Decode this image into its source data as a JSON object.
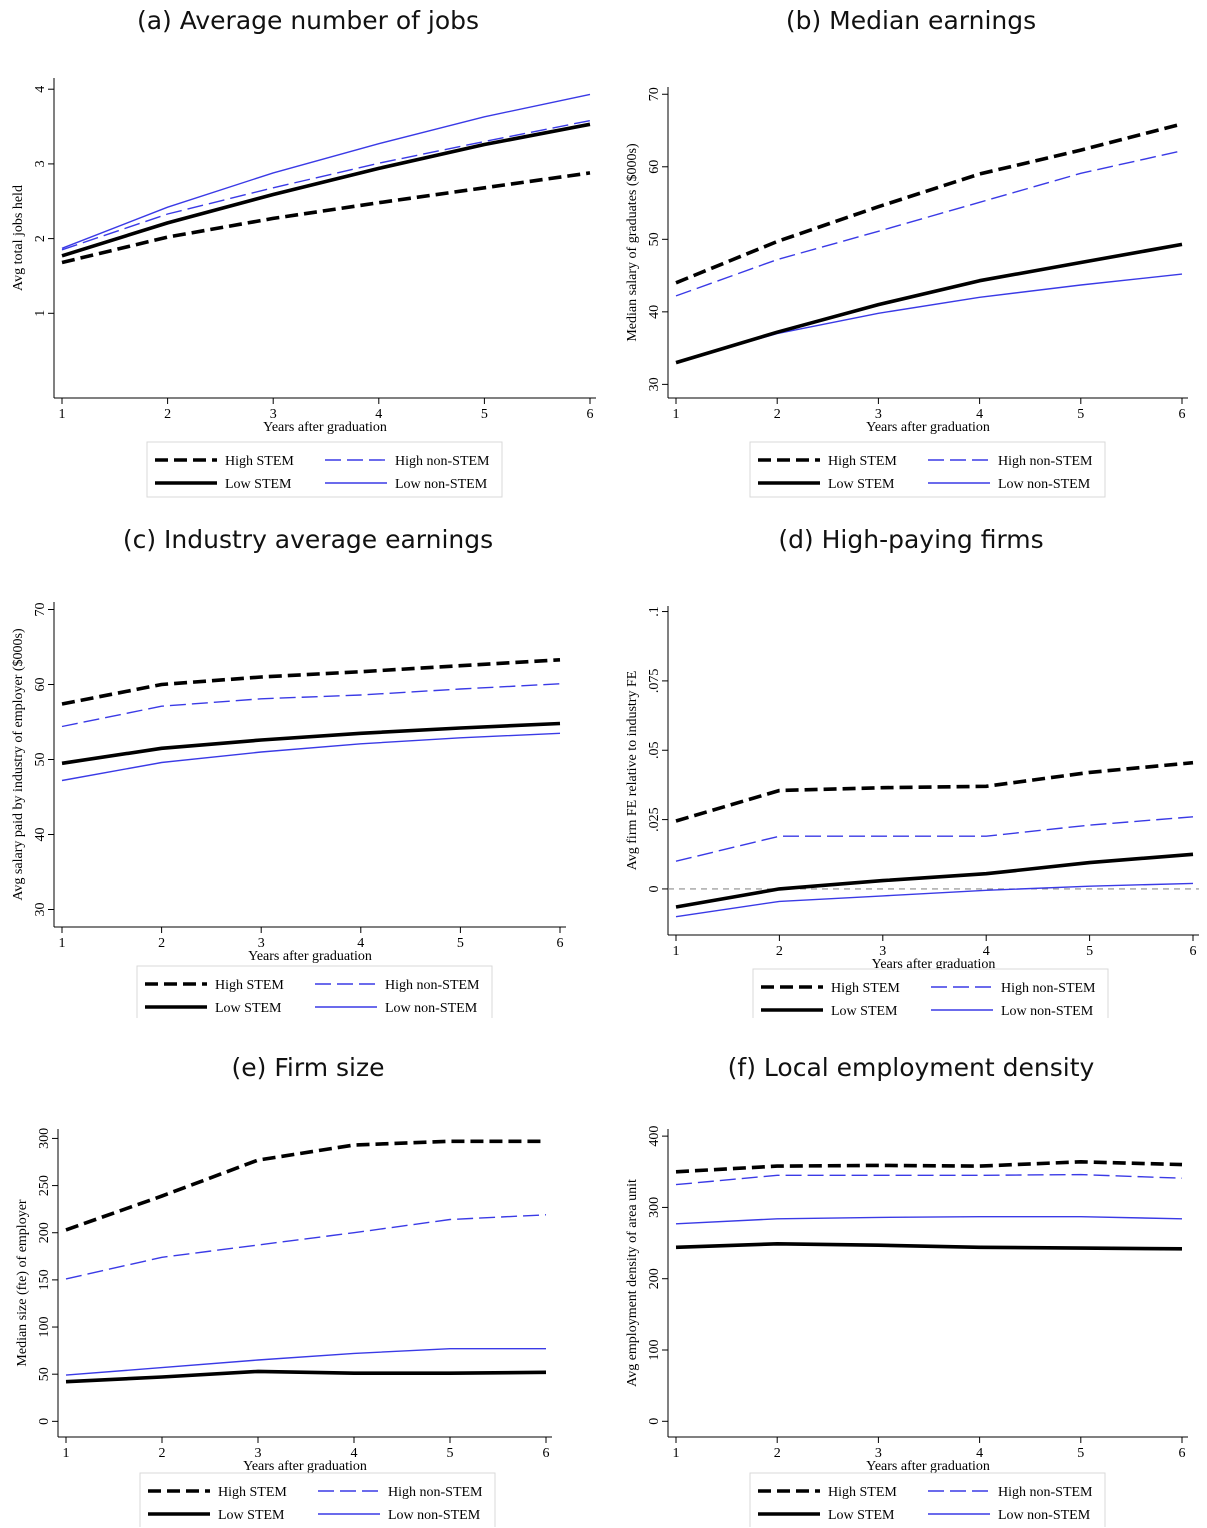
{
  "colors": {
    "stem": "#000000",
    "non_stem": "#3a3ae6",
    "zero_line": "#8c8c8c",
    "legend_border": "#d9d9d9"
  },
  "chart_data": [
    {
      "type": "line",
      "title": "(a)  Average number of jobs",
      "xlabel": "Years after graduation",
      "ylabel": "Avg total jobs held",
      "x": [
        1,
        2,
        3,
        4,
        5,
        6
      ],
      "xticks": [
        "1",
        "2",
        "3",
        "4",
        "5",
        "6"
      ],
      "yticks": [
        "1",
        "2",
        "3",
        "4"
      ],
      "ytick_values": [
        1,
        2,
        3,
        4
      ],
      "xlim": [
        1,
        6
      ],
      "ylim": [
        0,
        4.15
      ],
      "zero_line": false,
      "series": [
        {
          "name": "High STEM",
          "values": [
            1.68,
            2.02,
            2.27,
            2.48,
            2.68,
            2.88
          ]
        },
        {
          "name": "High non-STEM",
          "values": [
            1.85,
            2.33,
            2.68,
            3.01,
            3.3,
            3.58
          ]
        },
        {
          "name": "Low STEM",
          "values": [
            1.77,
            2.21,
            2.59,
            2.94,
            3.26,
            3.53
          ]
        },
        {
          "name": "Low non-STEM",
          "values": [
            1.87,
            2.42,
            2.88,
            3.27,
            3.63,
            3.93
          ]
        }
      ]
    },
    {
      "type": "line",
      "title": "(b)  Median earnings",
      "xlabel": "Years after graduation",
      "ylabel": "Median salary of graduates ($000s)",
      "x": [
        1,
        2,
        3,
        4,
        5,
        6
      ],
      "xticks": [
        "1",
        "2",
        "3",
        "4",
        "5",
        "6"
      ],
      "yticks": [
        "30",
        "40",
        "50",
        "60",
        "70"
      ],
      "ytick_values": [
        30,
        40,
        50,
        60,
        70
      ],
      "xlim": [
        1,
        6
      ],
      "ylim": [
        29.5,
        71
      ],
      "zero_line": false,
      "series": [
        {
          "name": "High STEM",
          "values": [
            44.0,
            49.7,
            54.5,
            59.0,
            62.3,
            65.9
          ]
        },
        {
          "name": "High non-STEM",
          "values": [
            42.2,
            47.2,
            51.1,
            55.1,
            59.1,
            62.2
          ]
        },
        {
          "name": "Low STEM",
          "values": [
            33.0,
            37.2,
            41.0,
            44.3,
            46.8,
            49.3
          ]
        },
        {
          "name": "Low non-STEM",
          "values": [
            33.1,
            37.0,
            39.8,
            42.0,
            43.7,
            45.2
          ]
        }
      ]
    },
    {
      "type": "line",
      "title": "(c)  Industry average earnings",
      "xlabel": "Years after graduation",
      "ylabel": "Avg salary paid by industry of employer ($000s)",
      "x": [
        1,
        2,
        3,
        4,
        5,
        6
      ],
      "xticks": [
        "1",
        "2",
        "3",
        "4",
        "5",
        "6"
      ],
      "yticks": [
        "30",
        "40",
        "50",
        "60",
        "70"
      ],
      "ytick_values": [
        30,
        40,
        50,
        60,
        70
      ],
      "xlim": [
        1,
        6
      ],
      "ylim": [
        29,
        71
      ],
      "zero_line": false,
      "series": [
        {
          "name": "High STEM",
          "values": [
            57.4,
            60.0,
            61.0,
            61.7,
            62.5,
            63.3
          ]
        },
        {
          "name": "High non-STEM",
          "values": [
            54.4,
            57.1,
            58.1,
            58.6,
            59.4,
            60.1
          ]
        },
        {
          "name": "Low STEM",
          "values": [
            49.5,
            51.5,
            52.6,
            53.5,
            54.2,
            54.8
          ]
        },
        {
          "name": "Low non-STEM",
          "values": [
            47.2,
            49.6,
            51.0,
            52.1,
            52.9,
            53.5
          ]
        }
      ]
    },
    {
      "type": "line",
      "title": "(d)  High-paying firms",
      "xlabel": "Years after graduation",
      "ylabel": "Avg firm FE relative to industry FE",
      "x": [
        1,
        2,
        3,
        4,
        5,
        6
      ],
      "xticks": [
        "1",
        "2",
        "3",
        "4",
        "5",
        "6"
      ],
      "yticks": [
        "0",
        ".025",
        ".05",
        ".075",
        ".1"
      ],
      "ytick_values": [
        0,
        0.025,
        0.05,
        0.075,
        0.1
      ],
      "xlim": [
        1,
        6
      ],
      "ylim": [
        -0.013,
        0.102
      ],
      "zero_line": true,
      "series": [
        {
          "name": "High STEM",
          "values": [
            0.0245,
            0.0355,
            0.0365,
            0.037,
            0.042,
            0.0455
          ]
        },
        {
          "name": "High non-STEM",
          "values": [
            0.01,
            0.019,
            0.019,
            0.019,
            0.023,
            0.026
          ]
        },
        {
          "name": "Low STEM",
          "values": [
            -0.0065,
            0.0,
            0.003,
            0.0055,
            0.0095,
            0.0125
          ]
        },
        {
          "name": "Low non-STEM",
          "values": [
            -0.01,
            -0.0045,
            -0.0025,
            -0.0005,
            0.001,
            0.002
          ]
        }
      ]
    },
    {
      "type": "line",
      "title": "(e)  Firm size",
      "xlabel": "Years after graduation",
      "ylabel": "Median size (fte) of employer",
      "x": [
        1,
        2,
        3,
        4,
        5,
        6
      ],
      "xticks": [
        "1",
        "2",
        "3",
        "4",
        "5",
        "6"
      ],
      "yticks": [
        "0",
        "50",
        "100",
        "150",
        "200",
        "250",
        "300"
      ],
      "ytick_values": [
        0,
        50,
        100,
        150,
        200,
        250,
        300
      ],
      "xlim": [
        1,
        6
      ],
      "ylim": [
        -6,
        310
      ],
      "zero_line": false,
      "series": [
        {
          "name": "High STEM",
          "values": [
            203,
            239,
            277,
            293,
            297,
            297
          ]
        },
        {
          "name": "High non-STEM",
          "values": [
            151,
            174,
            187,
            200,
            214,
            219
          ]
        },
        {
          "name": "Low STEM",
          "values": [
            42,
            47,
            53,
            51,
            51,
            52
          ]
        },
        {
          "name": "Low non-STEM",
          "values": [
            49,
            57,
            65,
            72,
            77,
            77
          ]
        }
      ]
    },
    {
      "type": "line",
      "title": "(f)  Local employment density",
      "xlabel": "Years after graduation",
      "ylabel": "Avg employment density of area unit",
      "x": [
        1,
        2,
        3,
        4,
        5,
        6
      ],
      "xticks": [
        "1",
        "2",
        "3",
        "4",
        "5",
        "6"
      ],
      "yticks": [
        "0",
        "100",
        "200",
        "300",
        "400"
      ],
      "ytick_values": [
        0,
        100,
        200,
        300,
        400
      ],
      "xlim": [
        1,
        6
      ],
      "ylim": [
        -8,
        410
      ],
      "zero_line": false,
      "series": [
        {
          "name": "High STEM",
          "values": [
            350,
            358,
            359,
            358,
            364,
            360
          ]
        },
        {
          "name": "High non-STEM",
          "values": [
            332,
            345,
            345,
            345,
            346,
            341
          ]
        },
        {
          "name": "Low STEM",
          "values": [
            244,
            249,
            247,
            244,
            243,
            242
          ]
        },
        {
          "name": "Low non-STEM",
          "values": [
            277,
            284,
            286,
            287,
            287,
            284
          ]
        }
      ]
    }
  ]
}
